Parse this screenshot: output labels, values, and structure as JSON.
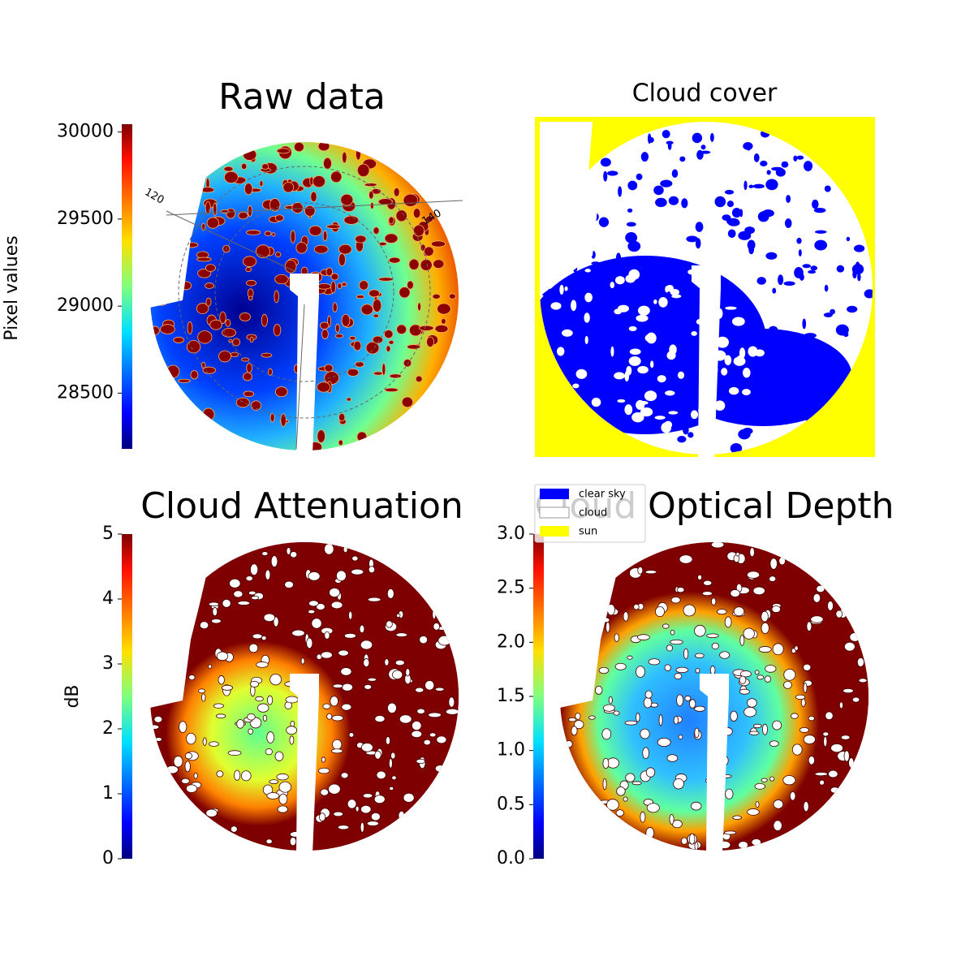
{
  "chart_data": [
    {
      "type": "image",
      "title": "Raw data",
      "colormap": "jet",
      "colorbar": {
        "label": "Pixel values",
        "lim": [
          28180,
          30045
        ],
        "ticks": [
          28500,
          29000,
          29500,
          30000
        ]
      },
      "annotations": [
        "120",
        "140"
      ]
    },
    {
      "type": "image",
      "title": "Cloud cover",
      "series": [
        {
          "name": "clear sky",
          "color": "#0000ff"
        },
        {
          "name": "cloud",
          "color": "#ffffff"
        },
        {
          "name": "sun",
          "color": "#ffff00"
        }
      ]
    },
    {
      "type": "image",
      "title": "Cloud Attenuation",
      "colormap": "jet",
      "colorbar": {
        "label": "dB",
        "lim": [
          0,
          5
        ],
        "ticks": [
          0,
          1,
          2,
          3,
          4,
          5
        ]
      }
    },
    {
      "type": "image",
      "title": "Cloud Optical Depth",
      "colormap": "jet",
      "colorbar": {
        "lim": [
          0,
          3
        ],
        "ticks": [
          {
            "value": 0,
            "label": "0.0"
          },
          {
            "value": 0.5,
            "label": "0.5"
          },
          {
            "value": 1,
            "label": "1.0"
          },
          {
            "value": 1.5,
            "label": "1.5"
          },
          {
            "value": 2,
            "label": "2.0"
          },
          {
            "value": 2.5,
            "label": "2.5"
          },
          {
            "value": 3,
            "label": "3.0"
          }
        ]
      }
    }
  ]
}
